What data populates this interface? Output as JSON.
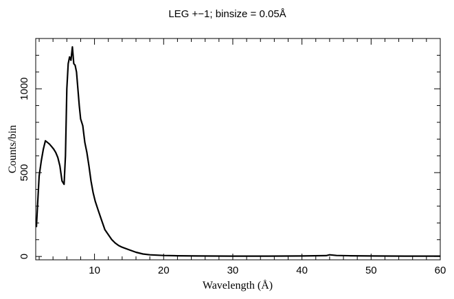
{
  "chart_data": {
    "type": "line",
    "title": "LEG +−1; binsize = 0.05Å",
    "xlabel": "Wavelength (Å)",
    "ylabel": "Counts/bin",
    "xlim": [
      1.5,
      60
    ],
    "ylim": [
      -20,
      1300
    ],
    "x_ticks": [
      10,
      20,
      30,
      40,
      50,
      60
    ],
    "y_ticks": [
      0,
      500,
      1000
    ],
    "grid": false,
    "legend": "none",
    "line_color": "#000000",
    "series": [
      {
        "x": [
          1.6,
          1.8,
          2.0,
          2.3,
          2.6,
          2.9,
          3.2,
          3.5,
          3.8,
          4.1,
          4.4,
          4.7,
          5.0,
          5.3,
          5.6,
          5.8,
          6.0,
          6.2,
          6.4,
          6.6,
          6.8,
          7.0,
          7.2,
          7.4,
          7.6,
          7.8,
          8.0,
          8.3,
          8.6,
          8.9,
          9.2,
          9.5,
          9.8,
          10.1,
          10.5,
          11.0,
          11.5,
          12.0,
          12.5,
          13.0,
          13.5,
          14.0,
          15.0,
          16.0,
          17.0,
          18.0,
          20.0,
          22.0,
          25.0,
          30.0,
          35.0,
          40.0,
          43.5,
          44.0,
          45.0,
          47.0,
          50.0,
          55.0,
          60.0
        ],
        "y": [
          175,
          330,
          480,
          570,
          640,
          690,
          680,
          670,
          655,
          640,
          620,
          590,
          540,
          450,
          430,
          600,
          1000,
          1150,
          1190,
          1170,
          1250,
          1150,
          1140,
          1100,
          1000,
          900,
          820,
          780,
          680,
          620,
          540,
          450,
          380,
          330,
          280,
          220,
          160,
          130,
          100,
          80,
          65,
          55,
          40,
          25,
          15,
          10,
          6,
          4,
          3,
          2,
          2,
          3,
          5,
          10,
          6,
          4,
          3,
          2,
          2
        ]
      }
    ]
  }
}
